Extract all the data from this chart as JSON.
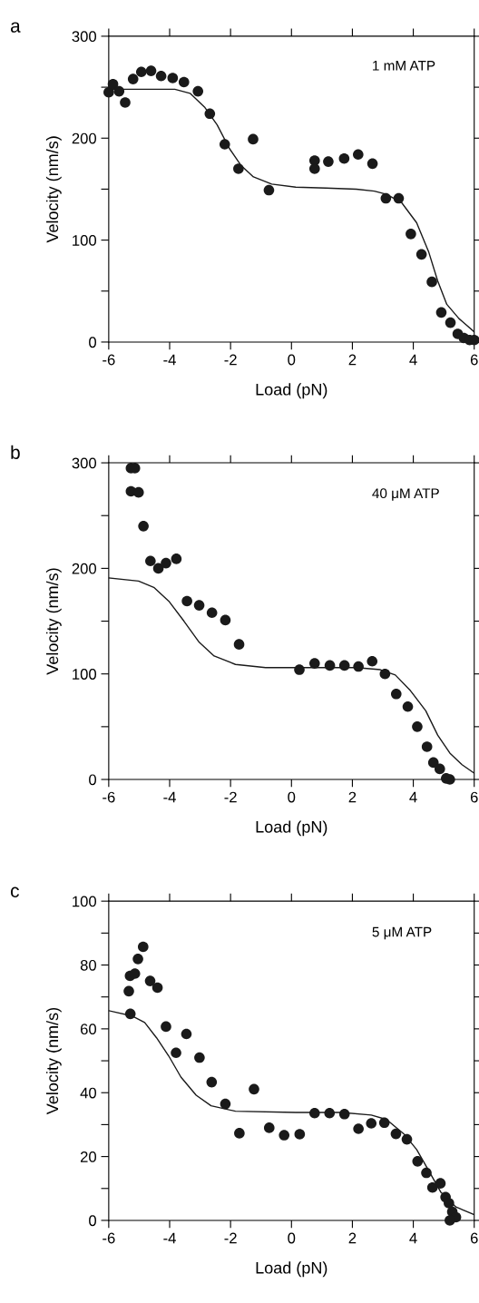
{
  "chart_data": [
    {
      "type": "scatter",
      "title": "a",
      "xlabel": "Load (pN)",
      "ylabel": "Velocity (nm/s)",
      "annotations": [
        "1 mM ATP"
      ],
      "xlim": [
        -6,
        6
      ],
      "xticks": [
        -6,
        -4,
        -2,
        0,
        2,
        4,
        6
      ],
      "ylim": [
        0,
        300
      ],
      "yticks": [
        0,
        {
          "value": 50,
          "label": null
        },
        100,
        {
          "value": 150,
          "label": null
        },
        200,
        {
          "value": 250,
          "label": null
        },
        300
      ],
      "grid": false,
      "legend": false,
      "marker": "circle",
      "series": [
        {
          "color": "#1a1a1a",
          "x": [
            -6,
            -5.86,
            -5.66,
            -5.46,
            -5.2,
            -4.93,
            -4.61,
            -4.28,
            -3.9,
            -3.53,
            -3.07,
            -2.68,
            -2.19,
            -1.74,
            -1.26,
            -0.74,
            0.76,
            0.76,
            1.21,
            1.73,
            2.19,
            2.66,
            3.1,
            3.52,
            3.92,
            4.27,
            4.61,
            4.92,
            5.22,
            5.46,
            5.66,
            5.85,
            6
          ],
          "values": [
            245,
            253,
            246,
            235,
            258,
            265,
            266,
            261,
            259,
            255,
            246,
            224,
            194,
            170,
            199,
            149,
            178,
            170,
            177,
            180,
            184,
            175,
            141,
            141,
            106,
            86,
            59,
            29,
            19,
            8,
            4,
            2,
            2
          ]
        },
        {
          "type": "line",
          "color": "#1a1a1a",
          "marker": "none",
          "line_style": "solid",
          "x": [
            -6,
            -3.83,
            -3.33,
            -2.84,
            -2.44,
            -2.04,
            -1.65,
            -1.25,
            -0.65,
            0.14,
            1.13,
            2.13,
            2.72,
            3.12,
            3.61,
            4.11,
            4.51,
            4.8,
            5.1,
            5.5,
            6
          ],
          "values": [
            248,
            248,
            244,
            230,
            213,
            190,
            173,
            162,
            155,
            152,
            151,
            150,
            148,
            145,
            137,
            117,
            88,
            60,
            37,
            23,
            10
          ]
        }
      ]
    },
    {
      "type": "scatter",
      "title": "b",
      "xlabel": "Load (pN)",
      "ylabel": "Velocity (nm/s)",
      "annotations": [
        "40 μM ATP"
      ],
      "xlim": [
        -6,
        6
      ],
      "xticks": [
        -6,
        -4,
        -2,
        0,
        2,
        4,
        6
      ],
      "ylim": [
        0,
        300
      ],
      "yticks": [
        0,
        {
          "value": 50,
          "label": null
        },
        100,
        {
          "value": 150,
          "label": null
        },
        200,
        {
          "value": 250,
          "label": null
        },
        300
      ],
      "grid": false,
      "legend": false,
      "marker": "circle",
      "series": [
        {
          "color": "#1a1a1a",
          "x": [
            -5.27,
            -5.14,
            -5.27,
            -5.02,
            -4.86,
            -4.63,
            -4.37,
            -4.12,
            -3.78,
            -3.43,
            -3.03,
            -2.61,
            -2.17,
            -1.72,
            0.26,
            0.76,
            1.26,
            1.74,
            2.2,
            2.65,
            3.07,
            3.44,
            3.82,
            4.13,
            4.45,
            4.66,
            4.87,
            5.08,
            5.2
          ],
          "values": [
            295,
            295,
            273,
            272,
            240,
            207,
            200,
            205,
            209,
            169,
            165,
            158,
            151,
            128,
            104,
            110,
            108,
            108,
            107,
            112,
            100,
            81,
            69,
            50,
            31,
            16,
            10,
            1,
            0
          ]
        },
        {
          "type": "line",
          "color": "#1a1a1a",
          "marker": "none",
          "line_style": "solid",
          "x": [
            -6,
            -5.02,
            -4.52,
            -4.03,
            -3.53,
            -3.03,
            -2.54,
            -1.84,
            -0.85,
            0.64,
            2.13,
            2.92,
            3.41,
            3.91,
            4.41,
            4.8,
            5.2,
            5.6,
            6
          ],
          "values": [
            191,
            188,
            182,
            169,
            150,
            130,
            117,
            109,
            106,
            106,
            106,
            104,
            99,
            84,
            65,
            42,
            25,
            14,
            6
          ]
        }
      ]
    },
    {
      "type": "scatter",
      "title": "c",
      "xlabel": "Load (pN)",
      "ylabel": "Velocity (nm/s)",
      "annotations": [
        "5 μM ATP"
      ],
      "xlim": [
        -6,
        6
      ],
      "xticks": [
        -6,
        -4,
        -2,
        0,
        2,
        4,
        6
      ],
      "ylim": [
        0,
        100
      ],
      "yticks": [
        0,
        {
          "value": 10,
          "label": null
        },
        20,
        {
          "value": 30,
          "label": null
        },
        40,
        {
          "value": 50,
          "label": null
        },
        60,
        {
          "value": 70,
          "label": null
        },
        80,
        {
          "value": 90,
          "label": null
        },
        100
      ],
      "grid": false,
      "legend": false,
      "marker": "circle",
      "series": [
        {
          "color": "#1a1a1a",
          "x": [
            -5.34,
            -5.3,
            -5.14,
            -5.04,
            -4.87,
            -4.64,
            -4.4,
            -5.29,
            -4.12,
            -3.79,
            -3.45,
            -3.02,
            -2.62,
            -2.17,
            -1.71,
            -1.23,
            -0.73,
            -0.24,
            0.27,
            0.76,
            1.25,
            1.74,
            2.2,
            2.62,
            3.05,
            3.43,
            3.79,
            4.14,
            4.43,
            4.63,
            4.89,
            5.06,
            5.17,
            5.28,
            5.4,
            5.2
          ],
          "values": [
            71.8,
            76.6,
            77.3,
            81.9,
            85.7,
            75,
            72.9,
            64.7,
            60.7,
            52.5,
            58.4,
            51,
            43.3,
            36.5,
            27.3,
            41.1,
            29,
            26.7,
            27,
            33.6,
            33.6,
            33.3,
            28.7,
            30.4,
            30.6,
            27.1,
            25.4,
            18.5,
            14.9,
            10.3,
            11.6,
            7.3,
            5.4,
            2.7,
            1,
            0
          ]
        },
        {
          "type": "line",
          "color": "#1a1a1a",
          "marker": "none",
          "line_style": "solid",
          "x": [
            -6,
            -5.22,
            -4.82,
            -4.43,
            -4.03,
            -3.63,
            -3.13,
            -2.64,
            -1.84,
            0.14,
            1.63,
            2.62,
            3.12,
            3.71,
            4.11,
            4.51,
            4.9,
            5.4,
            6
          ],
          "values": [
            65.7,
            64,
            62,
            57.2,
            51.5,
            44.9,
            39.2,
            35.9,
            34.2,
            33.8,
            33.8,
            33,
            31.6,
            26.9,
            22.2,
            15.5,
            8.9,
            4.2,
            1.8
          ]
        }
      ]
    }
  ]
}
